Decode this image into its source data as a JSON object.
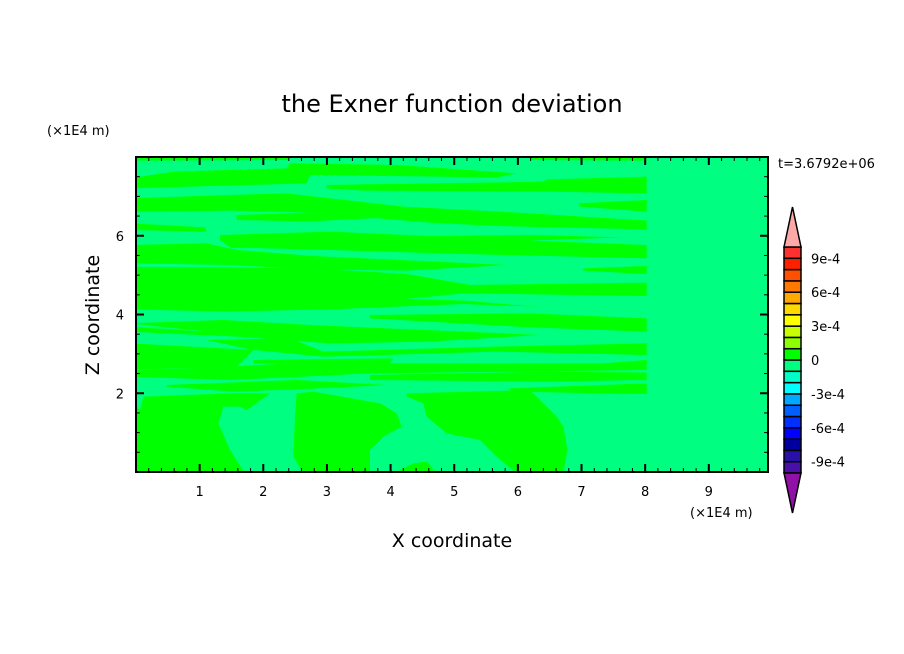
{
  "chart_data": {
    "type": "contour",
    "title": "the Exner function deviation",
    "xlabel": "X coordinate",
    "ylabel": "Z coordinate",
    "x_unit": "(×1E4 m)",
    "y_unit": "(×1E4 m)",
    "time_label": "t=3.6792e+06",
    "xlim": [
      0,
      9.93
    ],
    "ylim": [
      0,
      8
    ],
    "x_ticks": [
      "1",
      "2",
      "3",
      "4",
      "5",
      "6",
      "7",
      "8",
      "9"
    ],
    "y_ticks": [
      "2",
      "4",
      "6"
    ],
    "levels": [
      -0.001,
      -0.0009,
      -0.0008,
      -0.0007,
      -0.0006,
      -0.0005,
      -0.0004,
      -0.0003,
      -0.0002,
      -0.0001,
      0,
      0.0001,
      0.0002,
      0.0003,
      0.0004,
      0.0005,
      0.0006,
      0.0007,
      0.0008,
      0.0009,
      0.001
    ],
    "level_colors": [
      "#4810a8",
      "#2810a8",
      "#0000a0",
      "#0000ff",
      "#0030ff",
      "#0060ff",
      "#00a8ff",
      "#00ffff",
      "#00ffc8",
      "#00ff80",
      "#00ff00",
      "#8cff00",
      "#c8ff00",
      "#ffff00",
      "#ffd800",
      "#ffa800",
      "#ff7800",
      "#ff5000",
      "#ff2000",
      "#ff3030"
    ],
    "extend_colors": {
      "below": "#9010a8",
      "above": "#ffa8a8"
    },
    "colorbar_labels": [
      {
        "value": 0.0009,
        "label": "9e-4"
      },
      {
        "value": 0.0006,
        "label": "6e-4"
      },
      {
        "value": 0.0003,
        "label": "3e-4"
      },
      {
        "value": 0,
        "label": "0"
      },
      {
        "value": -0.0003,
        "label": "-3e-4"
      },
      {
        "value": -0.0006,
        "label": "-6e-4"
      },
      {
        "value": -0.0009,
        "label": "-9e-4"
      }
    ],
    "field_ranges_present": [
      [
        -0.0001,
        0
      ],
      [
        0,
        0.0001
      ]
    ]
  }
}
